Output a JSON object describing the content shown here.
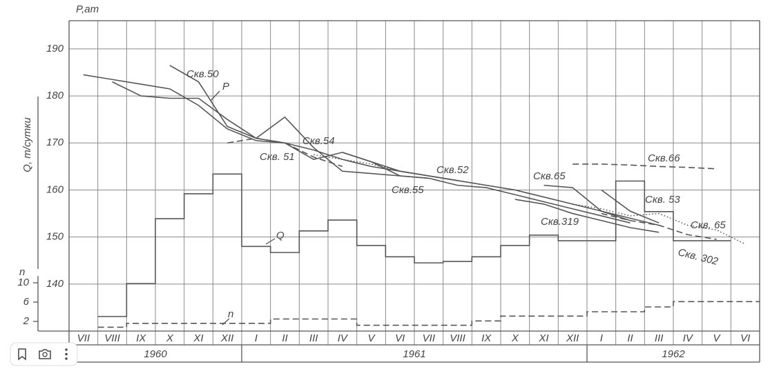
{
  "chart_data": {
    "type": "line",
    "y_label": "P,ат",
    "q_label": "Q, т/сутки",
    "n_label": "n",
    "categories": [
      "VII",
      "VIII",
      "IX",
      "X",
      "XI",
      "XII",
      "I",
      "II",
      "III",
      "IV",
      "V",
      "VI",
      "VII",
      "VIII",
      "IX",
      "X",
      "XI",
      "XII",
      "I",
      "II",
      "III",
      "IV",
      "V",
      "VI"
    ],
    "years": [
      {
        "label": "1960",
        "months": 6
      },
      {
        "label": "1961",
        "months": 12
      },
      {
        "label": "1962",
        "months": 6
      }
    ],
    "ylim": [
      130,
      196
    ],
    "yticks": [
      140,
      150,
      160,
      170,
      180,
      190
    ],
    "y2lim": [
      0,
      10
    ],
    "y2ticks": [
      2,
      6,
      10
    ],
    "grid": true,
    "series": [
      {
        "name": "Скв.50",
        "color": "#555",
        "line": "solid",
        "values": [
          null,
          null,
          null,
          186.5,
          183,
          173.5,
          171,
          170,
          166.5,
          168,
          166,
          164,
          163,
          162,
          null,
          null,
          null,
          null,
          null,
          null,
          null,
          null,
          null,
          null
        ]
      },
      {
        "name": "P",
        "color": "#555",
        "line": "solid",
        "values": [
          184.5,
          183.5,
          182.5,
          181.5,
          178,
          173,
          170.5,
          170,
          168.5,
          166.5,
          165,
          164,
          163,
          162,
          161,
          160,
          158.5,
          157,
          155.5,
          154,
          152.5,
          null,
          null,
          null
        ]
      },
      {
        "name": "Скв. 51",
        "color": "#555",
        "line": "dashed",
        "values": [
          null,
          null,
          null,
          null,
          null,
          170,
          171,
          170,
          167,
          165,
          null,
          null,
          null,
          null,
          null,
          null,
          null,
          null,
          null,
          null,
          null,
          null,
          null,
          null
        ]
      },
      {
        "name": "Скв.54",
        "color": "#555",
        "line": "solid",
        "values": [
          null,
          183,
          180,
          179.5,
          179.5,
          175,
          171,
          175.5,
          169,
          164,
          163.5,
          163,
          162.5,
          null,
          null,
          null,
          null,
          null,
          null,
          null,
          null,
          null,
          null,
          null
        ]
      },
      {
        "name": "Скв.52",
        "color": "#555",
        "line": "dotted",
        "values": [
          null,
          null,
          null,
          null,
          null,
          null,
          null,
          null,
          167.5,
          166.5,
          165.5,
          164,
          163,
          162,
          161,
          160,
          158.5,
          null,
          null,
          null,
          null,
          null,
          null,
          null
        ]
      },
      {
        "name": "Скв.55",
        "color": "#555",
        "line": "solid",
        "values": [
          null,
          null,
          null,
          null,
          null,
          null,
          null,
          null,
          null,
          168,
          166,
          163,
          162.5,
          161,
          160.5,
          159,
          157.5,
          156,
          154.5,
          153,
          null,
          null,
          null,
          null
        ]
      },
      {
        "name": "Скв.65",
        "color": "#555",
        "line": "solid",
        "values": [
          null,
          null,
          null,
          null,
          null,
          null,
          null,
          null,
          null,
          null,
          null,
          null,
          null,
          null,
          null,
          null,
          161,
          160.5,
          155.5,
          153.5,
          null,
          null,
          null,
          null
        ]
      },
      {
        "name": "Скв.319",
        "color": "#555",
        "line": "solid",
        "values": [
          null,
          null,
          null,
          null,
          null,
          null,
          null,
          null,
          null,
          null,
          null,
          null,
          null,
          null,
          null,
          158,
          157,
          155,
          153.5,
          152,
          151,
          null,
          null,
          null
        ]
      },
      {
        "name": "Скв.66",
        "color": "#555",
        "line": "dashed",
        "values": [
          null,
          null,
          null,
          null,
          null,
          null,
          null,
          null,
          null,
          null,
          null,
          null,
          null,
          null,
          null,
          null,
          null,
          165.5,
          165.5,
          165.3,
          165,
          164.8,
          164.5,
          null
        ]
      },
      {
        "name": "Скв. 53",
        "color": "#555",
        "line": "solid",
        "values": [
          null,
          null,
          null,
          null,
          null,
          null,
          null,
          null,
          null,
          null,
          null,
          null,
          null,
          null,
          null,
          null,
          null,
          null,
          160,
          155.5,
          153,
          null,
          null,
          null
        ]
      },
      {
        "name": "Скв. 302",
        "color": "#555",
        "line": "dashed",
        "values": [
          null,
          null,
          null,
          null,
          null,
          null,
          null,
          null,
          null,
          null,
          null,
          null,
          null,
          null,
          null,
          null,
          null,
          null,
          155,
          153.5,
          152.5,
          150.5,
          149.5,
          null
        ]
      },
      {
        "name": "Скв. 65",
        "color": "#555",
        "line": "dotted",
        "values": [
          null,
          null,
          null,
          null,
          null,
          null,
          null,
          null,
          null,
          null,
          null,
          null,
          null,
          null,
          null,
          null,
          null,
          157,
          156,
          154.5,
          155,
          152.5,
          151.5,
          148.5
        ]
      },
      {
        "name": "Q",
        "color": "#555",
        "line": "solid",
        "step": true,
        "values": [
          null,
          133.1,
          140.1,
          153.9,
          159.2,
          163.4,
          148,
          146.7,
          151.3,
          153.6,
          148.2,
          145.8,
          144.5,
          144.8,
          145.8,
          148.2,
          150.4,
          149.2,
          149.2,
          161.9,
          155.4,
          149.2,
          149.2,
          null
        ]
      },
      {
        "name": "n",
        "color": "#555",
        "line": "dashed",
        "step": true,
        "axis": "y2",
        "values": [
          null,
          0.8,
          1.6,
          1.6,
          1.6,
          1.6,
          1.6,
          2.5,
          2.5,
          2.5,
          1.2,
          1.2,
          1.2,
          1.2,
          2.1,
          3.1,
          3.1,
          3.1,
          4,
          4,
          5,
          6.1,
          6.1,
          6.1
        ]
      }
    ]
  }
}
